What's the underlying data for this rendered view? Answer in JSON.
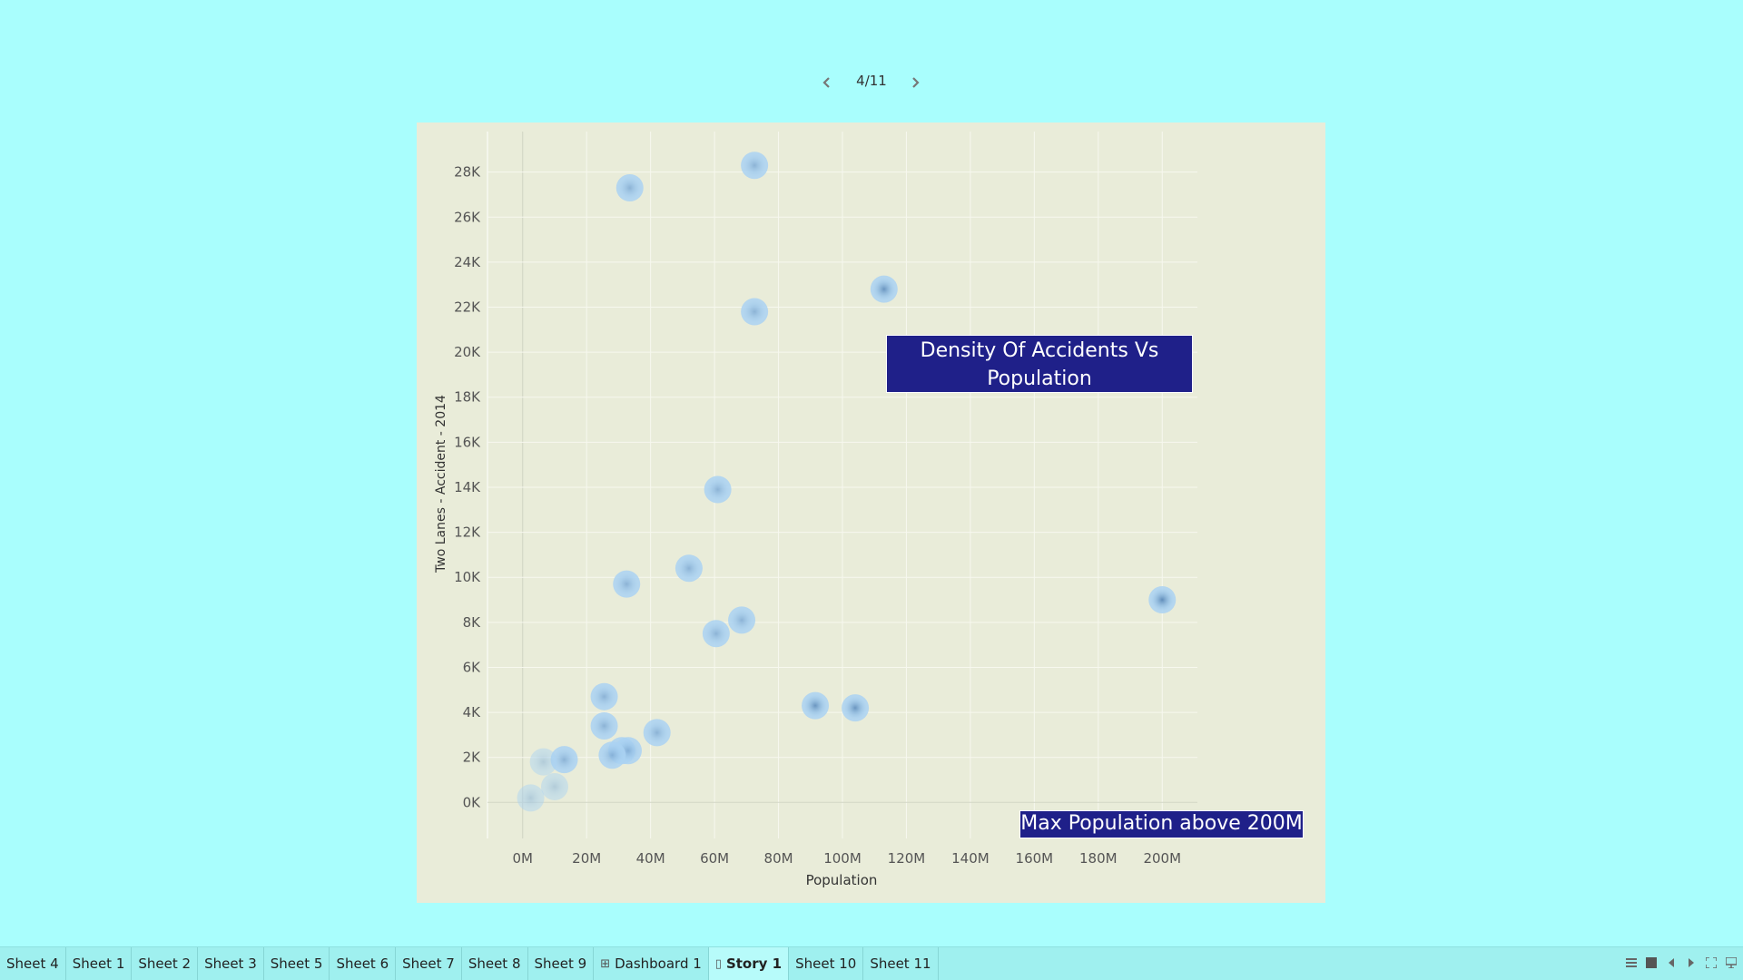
{
  "story_nav": {
    "page_indicator": "4/11",
    "prev_icon": "chevron-left-icon",
    "next_icon": "chevron-right-icon"
  },
  "chart_data": {
    "type": "scatter",
    "xlabel": "Population",
    "ylabel": "Two Lanes - Accident - 2014",
    "xlim": [
      -11,
      211
    ],
    "ylim": [
      -1600,
      29800
    ],
    "x_ticks": [
      0,
      20,
      40,
      60,
      80,
      100,
      120,
      140,
      160,
      180,
      200
    ],
    "x_tick_labels": [
      "0M",
      "20M",
      "40M",
      "60M",
      "80M",
      "100M",
      "120M",
      "140M",
      "160M",
      "180M",
      "200M"
    ],
    "y_ticks": [
      0,
      2000,
      4000,
      6000,
      8000,
      10000,
      12000,
      14000,
      16000,
      18000,
      20000,
      22000,
      24000,
      26000,
      28000
    ],
    "y_tick_labels": [
      "0K",
      "2K",
      "4K",
      "6K",
      "8K",
      "10K",
      "12K",
      "14K",
      "16K",
      "18K",
      "20K",
      "22K",
      "24K",
      "26K",
      "28K"
    ],
    "grid": true,
    "x_units": "millions",
    "points": [
      {
        "x": 33.5,
        "y": 27300
      },
      {
        "x": 72.5,
        "y": 28300
      },
      {
        "x": 113,
        "y": 22800
      },
      {
        "x": 72.5,
        "y": 21800
      },
      {
        "x": 61,
        "y": 13900
      },
      {
        "x": 52,
        "y": 10400
      },
      {
        "x": 32.5,
        "y": 9700
      },
      {
        "x": 68.5,
        "y": 8100
      },
      {
        "x": 60.5,
        "y": 7500
      },
      {
        "x": 200,
        "y": 9000
      },
      {
        "x": 91.5,
        "y": 4300
      },
      {
        "x": 104,
        "y": 4200
      },
      {
        "x": 25.5,
        "y": 4700
      },
      {
        "x": 25.5,
        "y": 3400
      },
      {
        "x": 42,
        "y": 3100
      },
      {
        "x": 31,
        "y": 2300
      },
      {
        "x": 33,
        "y": 2300
      },
      {
        "x": 28,
        "y": 2100
      },
      {
        "x": 13,
        "y": 1900
      },
      {
        "x": 6.5,
        "y": 1800
      },
      {
        "x": 10,
        "y": 700
      },
      {
        "x": 2.5,
        "y": 200
      }
    ],
    "color_scale": {
      "low": "#a9cff0",
      "high": "#1b4f8c"
    }
  },
  "annotations": {
    "title": "Density Of Accidents Vs Population",
    "max_note": "Max Population above 200M"
  },
  "tabs": [
    {
      "label": "Sheet 4",
      "icon": ""
    },
    {
      "label": "Sheet 1",
      "icon": ""
    },
    {
      "label": "Sheet 2",
      "icon": ""
    },
    {
      "label": "Sheet 3",
      "icon": ""
    },
    {
      "label": "Sheet 5",
      "icon": ""
    },
    {
      "label": "Sheet 6",
      "icon": ""
    },
    {
      "label": "Sheet 7",
      "icon": ""
    },
    {
      "label": "Sheet 8",
      "icon": ""
    },
    {
      "label": "Sheet 9",
      "icon": ""
    },
    {
      "label": "Dashboard 1",
      "icon": "dashboard-icon"
    },
    {
      "label": "Story 1",
      "icon": "story-icon",
      "active": true
    },
    {
      "label": "Sheet 10",
      "icon": ""
    },
    {
      "label": "Sheet 11",
      "icon": ""
    }
  ]
}
